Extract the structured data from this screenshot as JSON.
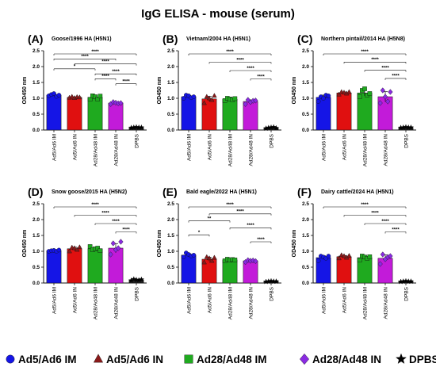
{
  "page": {
    "title": "IgG ELISA - mouse (serum)"
  },
  "legend": [
    {
      "label": "Ad5/Ad6 IM",
      "color": "#1515e6",
      "shape": "circle"
    },
    {
      "label": "Ad5/Ad6 IN",
      "color": "#8b1a1a",
      "shape": "triangle"
    },
    {
      "label": "Ad28/Ad48 IM",
      "color": "#1faa1f",
      "shape": "square"
    },
    {
      "label": "Ad28/Ad48 IN",
      "color": "#8a2be2",
      "shape": "diamond"
    },
    {
      "label": "DPBS",
      "color": "#000000",
      "shape": "star"
    }
  ],
  "colors": {
    "fills": [
      "#1515e6",
      "#e01010",
      "#1faa1f",
      "#c21bd9",
      "#222222"
    ]
  },
  "chart_data": [
    {
      "type": "bar",
      "panel": "(A)",
      "subtitle": "Goose/1996 HA (H5N1)",
      "ylabel": "OD450 nm",
      "ylim": [
        0,
        2.5
      ],
      "yticks": [
        "0.0",
        "0.5",
        "1.0",
        "1.5",
        "2.0",
        "2.5"
      ],
      "categories": [
        "Ad5/Ad6 IM",
        "Ad5/Ad6 IN",
        "Ad28/Ad48 IM",
        "Ad28/Ad48 IN",
        "DPBS"
      ],
      "values": [
        1.1,
        1.03,
        1.03,
        0.85,
        0.08
      ],
      "points": [
        [
          1.08,
          1.12,
          1.15,
          1.06,
          1.1
        ],
        [
          1.02,
          1.05,
          1.01,
          1.04,
          1.03
        ],
        [
          0.97,
          1.08,
          1.05,
          0.98,
          1.07
        ],
        [
          0.82,
          0.88,
          0.86,
          0.84,
          0.85
        ],
        [
          0.07,
          0.08,
          0.09,
          0.08,
          0.08
        ]
      ],
      "significance": [
        {
          "a": 0,
          "b": 4,
          "label": "****"
        },
        {
          "a": 1,
          "b": 4,
          "label": "****"
        },
        {
          "a": 0,
          "b": 3,
          "label": "****"
        },
        {
          "a": 2,
          "b": 4,
          "label": "****"
        },
        {
          "a": 3,
          "b": 4,
          "label": "****"
        },
        {
          "a": 0,
          "b": 2,
          "label": "*"
        },
        {
          "a": 2,
          "b": 3,
          "label": "****"
        }
      ]
    },
    {
      "type": "bar",
      "panel": "(B)",
      "subtitle": "Vietnam/2004 HA (H5N1)",
      "ylabel": "OD450 nm",
      "ylim": [
        0,
        2.5
      ],
      "yticks": [
        "0.0",
        "0.5",
        "1.0",
        "1.5",
        "2.0",
        "2.5"
      ],
      "categories": [
        "Ad5/Ad6 IM",
        "Ad5/Ad6 IN",
        "Ad28/Ad48 IM",
        "Ad28/Ad48 IN",
        "DPBS"
      ],
      "values": [
        1.05,
        0.98,
        0.97,
        0.9,
        0.07
      ],
      "points": [
        [
          1.0,
          1.1,
          1.08,
          1.02,
          1.05
        ],
        [
          0.85,
          1.05,
          1.0,
          0.95,
          1.08
        ],
        [
          0.93,
          1.0,
          0.98,
          0.96,
          0.99
        ],
        [
          0.82,
          0.95,
          0.88,
          0.92,
          0.93
        ],
        [
          0.05,
          0.07,
          0.08,
          0.09,
          0.06
        ]
      ],
      "significance": [
        {
          "a": 0,
          "b": 4,
          "label": "****"
        },
        {
          "a": 1,
          "b": 4,
          "label": "****"
        },
        {
          "a": 2,
          "b": 4,
          "label": "****"
        },
        {
          "a": 3,
          "b": 4,
          "label": "****"
        }
      ]
    },
    {
      "type": "bar",
      "panel": "(C)",
      "subtitle": "Northern pintail/2014 HA (H5N8)",
      "ylabel": "OD450 nm",
      "ylim": [
        0,
        2.5
      ],
      "yticks": [
        "0.0",
        "0.5",
        "1.0",
        "1.5",
        "2.0",
        "2.5"
      ],
      "categories": [
        "Ad5/Ad6 IM",
        "Ad5/Ad6 IN",
        "Ad28/Ad48 IM",
        "Ad28/Ad48 IN",
        "DPBS"
      ],
      "values": [
        1.03,
        1.17,
        1.17,
        1.05,
        0.08
      ],
      "points": [
        [
          0.9,
          1.05,
          1.0,
          1.1,
          1.08
        ],
        [
          1.12,
          1.2,
          1.18,
          1.15,
          1.2
        ],
        [
          1.05,
          1.25,
          1.3,
          1.1,
          1.15
        ],
        [
          0.85,
          1.25,
          1.05,
          0.9,
          1.2
        ],
        [
          0.07,
          0.08,
          0.09,
          0.08,
          0.08
        ]
      ],
      "significance": [
        {
          "a": 0,
          "b": 4,
          "label": "****"
        },
        {
          "a": 1,
          "b": 4,
          "label": "****"
        },
        {
          "a": 2,
          "b": 4,
          "label": "****"
        },
        {
          "a": 3,
          "b": 4,
          "label": "****"
        }
      ]
    },
    {
      "type": "bar",
      "panel": "(D)",
      "subtitle": "Snow goose/2015 HA (H5N2)",
      "ylabel": "OD450 nm",
      "ylim": [
        0,
        2.5
      ],
      "yticks": [
        "0.0",
        "0.5",
        "1.0",
        "1.5",
        "2.0",
        "2.5"
      ],
      "categories": [
        "Ad5/Ad6 IM",
        "Ad5/Ad6 IN",
        "Ad28/Ad48 IM",
        "Ad28/Ad48 IN",
        "DPBS"
      ],
      "values": [
        1.02,
        1.08,
        1.08,
        1.1,
        0.1
      ],
      "points": [
        [
          1.0,
          1.02,
          1.03,
          1.0,
          1.04
        ],
        [
          1.0,
          1.12,
          1.1,
          1.05,
          1.13
        ],
        [
          1.15,
          1.05,
          1.08,
          1.1,
          1.02
        ],
        [
          0.9,
          1.25,
          1.05,
          1.1,
          1.3
        ],
        [
          0.08,
          0.12,
          0.1,
          0.09,
          0.11
        ]
      ],
      "significance": [
        {
          "a": 0,
          "b": 4,
          "label": "****"
        },
        {
          "a": 1,
          "b": 4,
          "label": "****"
        },
        {
          "a": 2,
          "b": 4,
          "label": "****"
        },
        {
          "a": 3,
          "b": 4,
          "label": "****"
        }
      ]
    },
    {
      "type": "bar",
      "panel": "(E)",
      "subtitle": "Bald eagle/2022 HA (H5N1)",
      "ylabel": "OD450 nm",
      "ylim": [
        0,
        2.5
      ],
      "yticks": [
        "0.0",
        "0.5",
        "1.0",
        "1.5",
        "2.0",
        "2.5"
      ],
      "categories": [
        "Ad5/Ad6 IM",
        "Ad5/Ad6 IN",
        "Ad28/Ad48 IM",
        "Ad28/Ad48 IN",
        "DPBS"
      ],
      "values": [
        0.88,
        0.75,
        0.73,
        0.7,
        0.05
      ],
      "points": [
        [
          0.82,
          0.95,
          0.9,
          0.85,
          0.88
        ],
        [
          0.65,
          0.82,
          0.78,
          0.7,
          0.8
        ],
        [
          0.7,
          0.75,
          0.72,
          0.74,
          0.73
        ],
        [
          0.66,
          0.72,
          0.7,
          0.71,
          0.69
        ],
        [
          0.04,
          0.05,
          0.06,
          0.05,
          0.05
        ]
      ],
      "significance": [
        {
          "a": 0,
          "b": 4,
          "label": "****"
        },
        {
          "a": 1,
          "b": 4,
          "label": "****"
        },
        {
          "a": 0,
          "b": 2,
          "label": "**"
        },
        {
          "a": 2,
          "b": 4,
          "label": "****"
        },
        {
          "a": 0,
          "b": 1,
          "label": "*"
        },
        {
          "a": 3,
          "b": 4,
          "label": "****"
        }
      ]
    },
    {
      "type": "bar",
      "panel": "(F)",
      "subtitle": "Dairy cattle/2024 HA (H5N1)",
      "ylabel": "OD450 nm",
      "ylim": [
        0,
        2.5
      ],
      "yticks": [
        "0.0",
        "0.5",
        "1.0",
        "1.5",
        "2.0",
        "2.5"
      ],
      "categories": [
        "Ad5/Ad6 IM",
        "Ad5/Ad6 IN",
        "Ad28/Ad48 IM",
        "Ad28/Ad48 IN",
        "DPBS"
      ],
      "values": [
        0.8,
        0.83,
        0.8,
        0.78,
        0.05
      ],
      "points": [
        [
          0.7,
          0.85,
          0.82,
          0.78,
          0.85
        ],
        [
          0.78,
          0.88,
          0.85,
          0.8,
          0.86
        ],
        [
          0.72,
          0.85,
          0.82,
          0.78,
          0.83
        ],
        [
          0.6,
          0.9,
          0.75,
          0.82,
          0.85
        ],
        [
          0.04,
          0.05,
          0.06,
          0.05,
          0.05
        ]
      ],
      "significance": [
        {
          "a": 0,
          "b": 4,
          "label": "****"
        },
        {
          "a": 1,
          "b": 4,
          "label": "****"
        },
        {
          "a": 2,
          "b": 4,
          "label": "****"
        },
        {
          "a": 3,
          "b": 4,
          "label": "****"
        }
      ]
    }
  ]
}
